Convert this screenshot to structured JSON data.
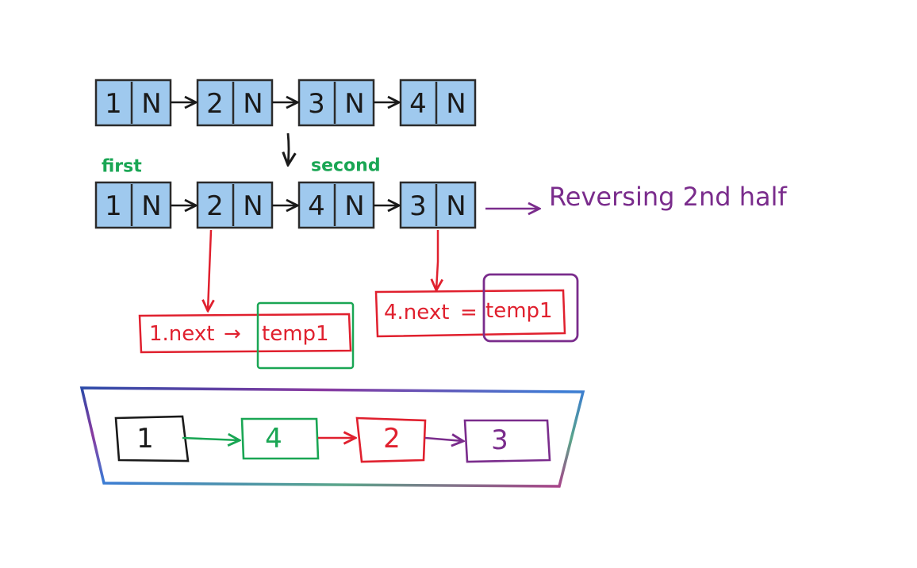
{
  "colors": {
    "node_fill": "#9fc9ee",
    "node_stroke": "#2b2b2b",
    "arrow": "#1a1a1a",
    "green": "#1aa654",
    "red": "#e0202e",
    "purple": "#7a2c8c",
    "black": "#1a1a1a"
  },
  "original_list": {
    "nodes": [
      {
        "value": "1",
        "next": "N"
      },
      {
        "value": "2",
        "next": "N"
      },
      {
        "value": "3",
        "next": "N"
      },
      {
        "value": "4",
        "next": "N"
      }
    ]
  },
  "modified_list": {
    "nodes": [
      {
        "value": "1",
        "next": "N"
      },
      {
        "value": "2",
        "next": "N"
      },
      {
        "value": "4",
        "next": "N"
      },
      {
        "value": "3",
        "next": "N"
      }
    ],
    "pointer_first": "first",
    "pointer_second": "second",
    "annotation": "Reversing 2nd half"
  },
  "step_boxes": {
    "left": {
      "prefix": "1.next",
      "arrow": "→",
      "target": "temp1"
    },
    "right": {
      "prefix": "4.next",
      "equals": "=",
      "target": "temp1"
    }
  },
  "result_list": {
    "nodes": [
      {
        "value": "1",
        "color": "black"
      },
      {
        "value": "4",
        "color": "green"
      },
      {
        "value": "2",
        "color": "red"
      },
      {
        "value": "3",
        "color": "purple"
      }
    ]
  }
}
